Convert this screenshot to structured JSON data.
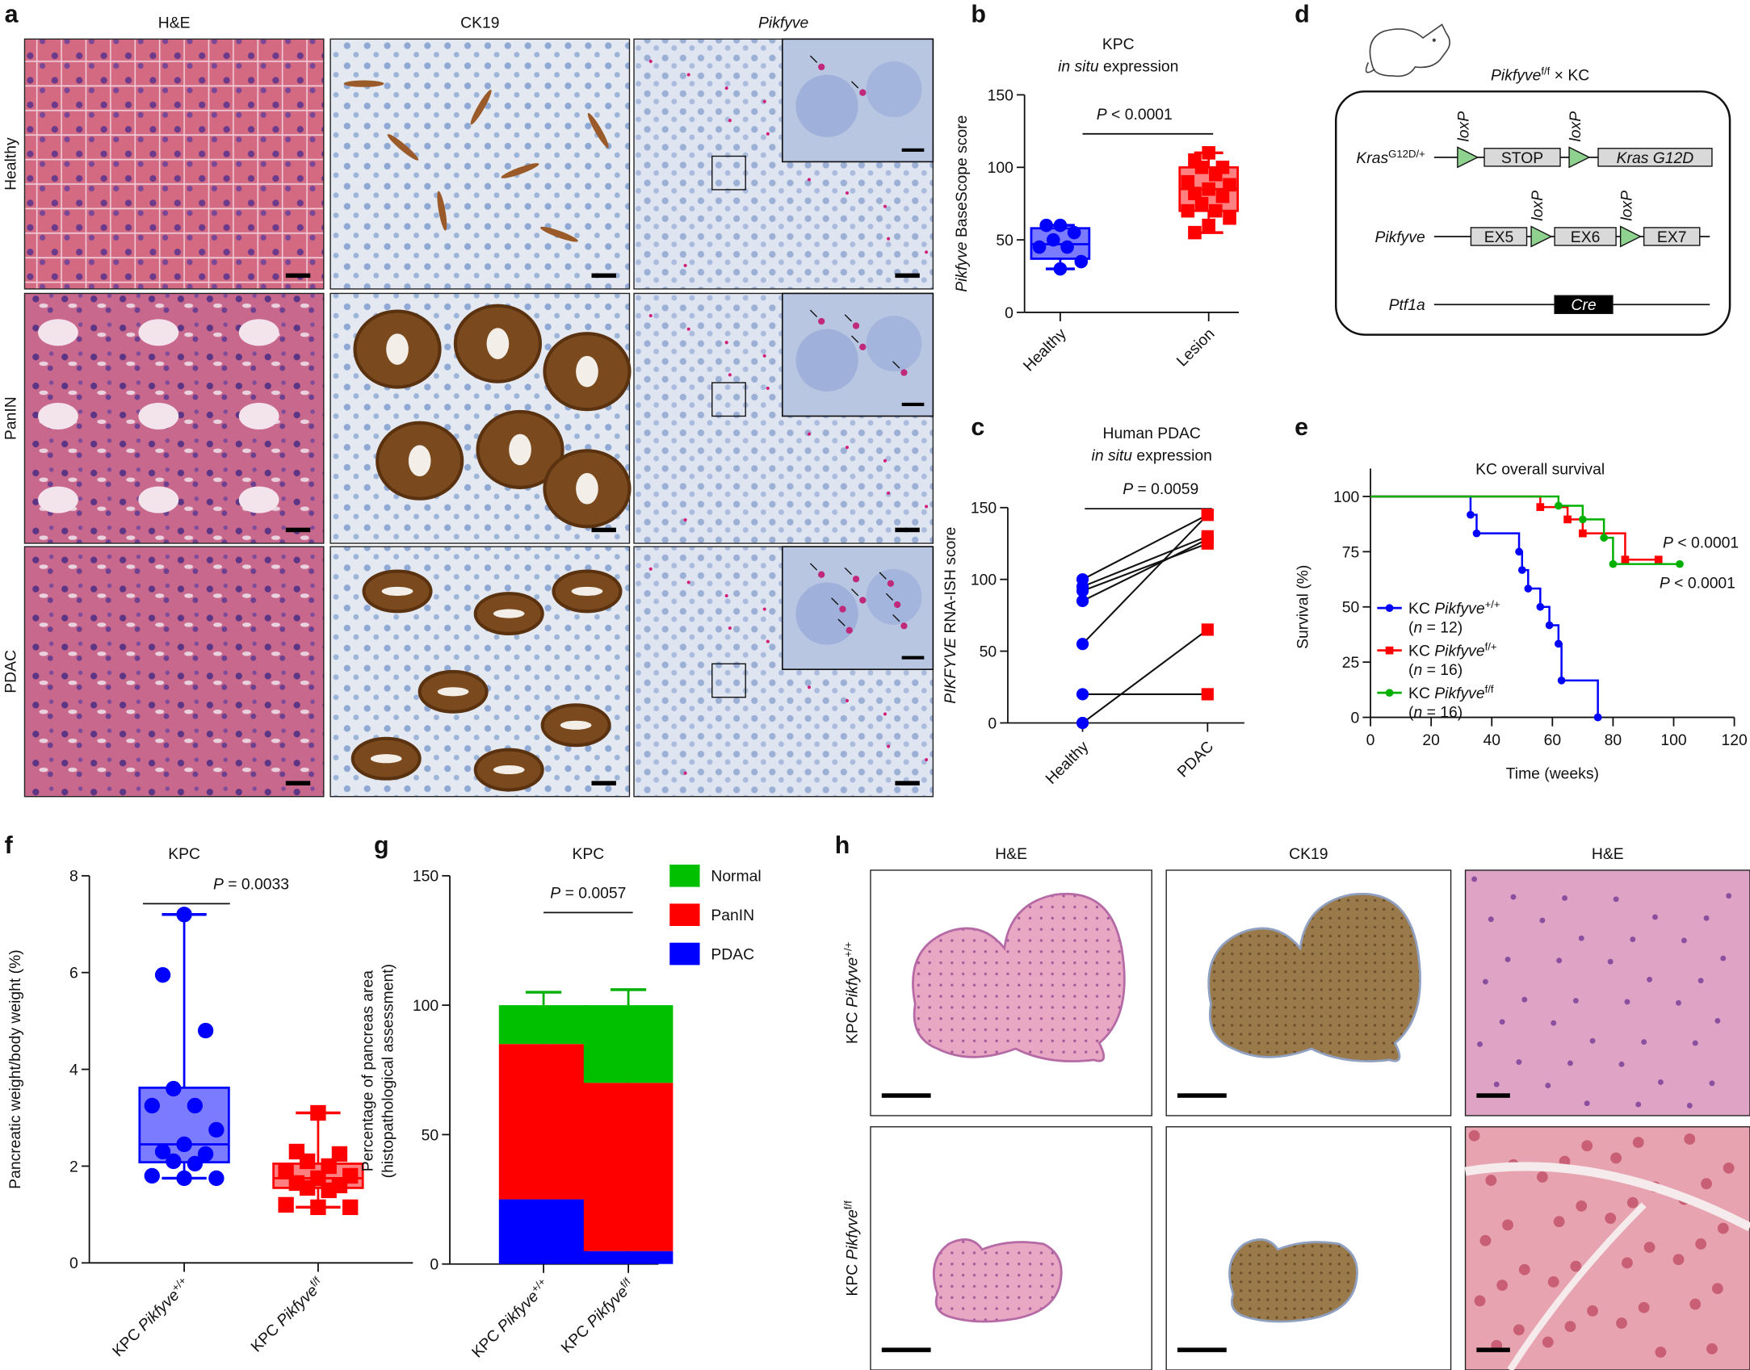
{
  "panel_labels": {
    "a": "a",
    "b": "b",
    "c": "c",
    "d": "d",
    "e": "e",
    "f": "f",
    "g": "g",
    "h": "h"
  },
  "panel_a": {
    "columns": [
      [
        {
          "t": "H&E"
        }
      ],
      [
        {
          "t": "CK19"
        }
      ],
      [
        {
          "t": "Pikfyve",
          "i": true
        }
      ]
    ],
    "rows": [
      "Healthy",
      "PanIN",
      "PDAC"
    ]
  },
  "panel_d": {
    "title": [
      {
        "t": "Pikfyve",
        "i": true
      },
      {
        "t": "f/f",
        "sup": true
      },
      {
        "t": " × KC"
      }
    ],
    "genes": [
      [
        {
          "t": "Kras",
          "i": true
        },
        {
          "t": "G12D/+",
          "sup": true
        }
      ],
      [
        {
          "t": "Pikfyve",
          "i": true
        }
      ],
      [
        {
          "t": "Ptf1a",
          "i": true
        }
      ]
    ],
    "loxp": "loxP",
    "boxes": {
      "stop": "STOP",
      "kras": "Kras G12D",
      "ex5": "EX5",
      "ex6": "EX6",
      "ex7": "EX7",
      "cre": "Cre"
    },
    "colors": {
      "loxp": "#8fd18f",
      "exon": "#d9d9d9",
      "cre": "#000000"
    }
  },
  "panel_h": {
    "columns": [
      "H&E",
      "CK19",
      "H&E"
    ],
    "rows": [
      [
        {
          "t": "KPC "
        },
        {
          "t": "Pikfyve",
          "i": true
        },
        {
          "t": "+/+",
          "sup": true
        }
      ],
      [
        {
          "t": "KPC "
        },
        {
          "t": "Pikfyve",
          "i": true
        },
        {
          "t": "f/f",
          "sup": true
        }
      ]
    ]
  },
  "chart_data": [
    {
      "panel": "b",
      "type": "box",
      "title": [
        [
          {
            "t": "KPC"
          }
        ],
        [
          {
            "t": "in situ",
            "i": true
          },
          {
            "t": " expression"
          }
        ]
      ],
      "ylabel": [
        {
          "t": "Pikfyve",
          "i": true
        },
        {
          "t": " BaseScope score"
        }
      ],
      "categories": [
        "Healthy",
        "Lesion"
      ],
      "ylim": [
        0,
        150
      ],
      "yticks": [
        0,
        50,
        100,
        150
      ],
      "pvalue": [
        {
          "t": "P",
          "i": true
        },
        {
          "t": " < 0.0001"
        }
      ],
      "series": [
        {
          "color": "#0000ff",
          "fill": "#7b7bff",
          "marker": "circle",
          "box": {
            "min": 30,
            "q1": 37,
            "median": 47,
            "q3": 58,
            "max": 60
          },
          "points": [
            60,
            60,
            55,
            50,
            45,
            45,
            35,
            30
          ]
        },
        {
          "color": "#ff0000",
          "fill": "#ff8080",
          "marker": "square",
          "box": {
            "min": 55,
            "q1": 70,
            "median": 85,
            "q3": 100,
            "max": 110
          },
          "points": [
            110,
            105,
            100,
            100,
            95,
            90,
            88,
            85,
            82,
            80,
            75,
            70,
            70,
            65,
            60,
            55
          ]
        }
      ]
    },
    {
      "panel": "c",
      "type": "paired",
      "title": [
        [
          {
            "t": "Human PDAC"
          }
        ],
        [
          {
            "t": "in situ",
            "i": true
          },
          {
            "t": " expression"
          }
        ]
      ],
      "ylabel": [
        {
          "t": "PIKFYVE",
          "i": true
        },
        {
          "t": " RNA-ISH score"
        }
      ],
      "categories": [
        "Healthy",
        "PDAC"
      ],
      "ylim": [
        0,
        150
      ],
      "yticks": [
        0,
        50,
        100,
        150
      ],
      "pvalue": [
        {
          "t": "P",
          "i": true
        },
        {
          "t": " = 0.0059"
        }
      ],
      "colors": [
        "#0000ff",
        "#ff0000"
      ],
      "pairs": [
        [
          100,
          145
        ],
        [
          95,
          130
        ],
        [
          92,
          125
        ],
        [
          85,
          128
        ],
        [
          55,
          145
        ],
        [
          20,
          20
        ],
        [
          0,
          65
        ]
      ]
    },
    {
      "panel": "e",
      "type": "survival",
      "title": "KC overall survival",
      "xlabel": "Time (weeks)",
      "ylabel": "Survival (%)",
      "xlim": [
        0,
        120
      ],
      "xticks": [
        0,
        20,
        40,
        60,
        80,
        100,
        120
      ],
      "ylim": [
        0,
        100
      ],
      "yticks": [
        0,
        25,
        50,
        75,
        100
      ],
      "pvalues": [
        [
          {
            "t": "P",
            "i": true
          },
          {
            "t": " < 0.0001"
          }
        ],
        [
          {
            "t": "P",
            "i": true
          },
          {
            "t": " < 0.0001"
          }
        ]
      ],
      "series": [
        {
          "label": [
            {
              "t": "KC "
            },
            {
              "t": "Pikfyve",
              "i": true
            },
            {
              "t": "+/+",
              "sup": true
            }
          ],
          "n": [
            {
              "t": "("
            },
            {
              "t": "n",
              "i": true
            },
            {
              "t": " = 12)"
            }
          ],
          "color": "#0000ff",
          "steps": [
            [
              0,
              100
            ],
            [
              33,
              91.7
            ],
            [
              35,
              83.3
            ],
            [
              49,
              75
            ],
            [
              50,
              66.7
            ],
            [
              52,
              58.3
            ],
            [
              56,
              50
            ],
            [
              59,
              41.7
            ],
            [
              62,
              33.3
            ],
            [
              63,
              16.7
            ],
            [
              75,
              0
            ]
          ],
          "end": 75
        },
        {
          "label": [
            {
              "t": "KC "
            },
            {
              "t": "Pikfyve",
              "i": true
            },
            {
              "t": "f/+",
              "sup": true
            }
          ],
          "n": [
            {
              "t": "("
            },
            {
              "t": "n",
              "i": true
            },
            {
              "t": " = 16)"
            }
          ],
          "color": "#ff0000",
          "steps": [
            [
              0,
              100
            ],
            [
              56,
              95.2
            ],
            [
              65,
              89.6
            ],
            [
              70,
              83.3
            ],
            [
              84,
              71.4
            ]
          ],
          "end": 95
        },
        {
          "label": [
            {
              "t": "KC "
            },
            {
              "t": "Pikfyve",
              "i": true
            },
            {
              "t": "f/f",
              "sup": true
            }
          ],
          "n": [
            {
              "t": "("
            },
            {
              "t": "n",
              "i": true
            },
            {
              "t": " = 16)"
            }
          ],
          "color": "#00b000",
          "steps": [
            [
              0,
              100
            ],
            [
              62,
              95.8
            ],
            [
              70,
              89.6
            ],
            [
              77,
              81.3
            ],
            [
              80,
              69.4
            ]
          ],
          "end": 102
        }
      ]
    },
    {
      "panel": "f",
      "type": "box",
      "title": [
        [
          {
            "t": "KPC"
          }
        ]
      ],
      "ylabel": [
        {
          "t": "Pancreatic weight/body weight (%)"
        }
      ],
      "categories": [
        [
          {
            "t": "KPC "
          },
          {
            "t": "Pikfyve",
            "i": true
          },
          {
            "t": "+/+",
            "sup": true
          }
        ],
        [
          {
            "t": "KPC "
          },
          {
            "t": "Pikfyve",
            "i": true
          },
          {
            "t": "f/f",
            "sup": true
          }
        ]
      ],
      "ylim": [
        0,
        8
      ],
      "yticks": [
        0,
        2,
        4,
        6,
        8
      ],
      "pvalue": [
        {
          "t": "P",
          "i": true
        },
        {
          "t": " = 0.0033"
        }
      ],
      "series": [
        {
          "color": "#0000ff",
          "fill": "#7b7bff",
          "marker": "circle",
          "box": {
            "min": 1.75,
            "q1": 2.08,
            "median": 2.45,
            "q3": 3.62,
            "max": 7.2
          },
          "points": [
            7.2,
            5.95,
            4.8,
            3.6,
            3.25,
            3.25,
            2.75,
            2.45,
            2.3,
            2.25,
            2.1,
            2.05,
            1.8,
            1.75,
            1.75
          ]
        },
        {
          "color": "#ff0000",
          "fill": "#ff8080",
          "marker": "square",
          "box": {
            "min": 1.15,
            "q1": 1.55,
            "median": 1.75,
            "q3": 2.05,
            "max": 3.1
          },
          "points": [
            3.1,
            2.3,
            2.25,
            2.1,
            2.0,
            1.9,
            1.8,
            1.75,
            1.65,
            1.6,
            1.55,
            1.5,
            1.2,
            1.15,
            1.15
          ]
        }
      ]
    },
    {
      "panel": "g",
      "type": "stacked-bar",
      "title": [
        [
          {
            "t": "KPC"
          }
        ]
      ],
      "ylabel": [
        [
          {
            "t": "Percentage of pancreas area"
          }
        ],
        [
          {
            "t": "(histopathological assessment)"
          }
        ]
      ],
      "categories": [
        [
          {
            "t": "KPC "
          },
          {
            "t": "Pikfyve",
            "i": true
          },
          {
            "t": "+/+",
            "sup": true
          }
        ],
        [
          {
            "t": "KPC "
          },
          {
            "t": "Pikfyve",
            "i": true
          },
          {
            "t": "f/f",
            "sup": true
          }
        ]
      ],
      "ylim": [
        0,
        150
      ],
      "yticks": [
        0,
        50,
        100,
        150
      ],
      "pvalue": [
        {
          "t": "P",
          "i": true
        },
        {
          "t": " = 0.0057"
        }
      ],
      "legend_position": "top-right",
      "series": [
        {
          "name": "PDAC",
          "color": "#0000ff",
          "values": [
            25,
            5
          ],
          "error": [
            8,
            2
          ]
        },
        {
          "name": "PanIN",
          "color": "#ff0000",
          "values": [
            60,
            65
          ],
          "error": [
            7,
            5
          ]
        },
        {
          "name": "Normal",
          "color": "#00c000",
          "values": [
            15,
            30
          ],
          "error": [
            5,
            6
          ]
        }
      ],
      "legend_order": [
        "Normal",
        "PanIN",
        "PDAC"
      ]
    }
  ]
}
